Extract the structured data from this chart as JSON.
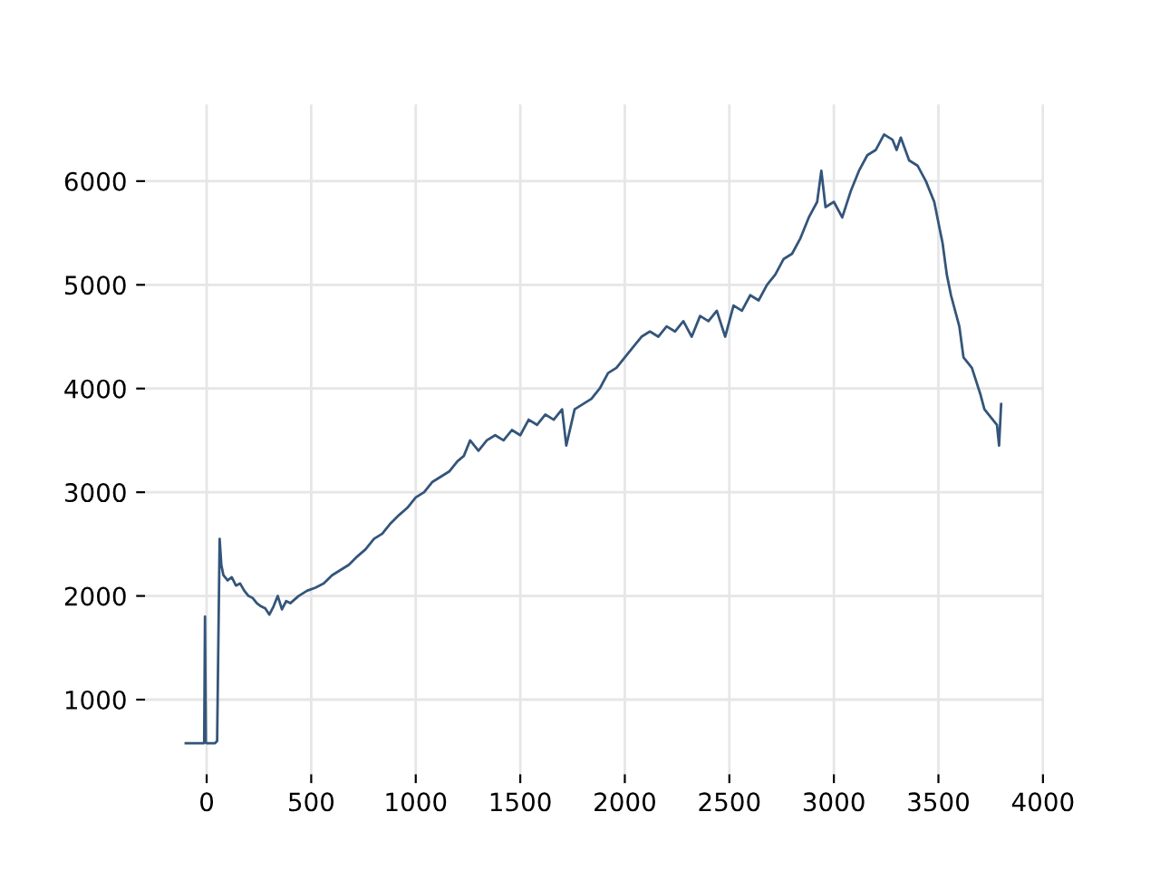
{
  "chart_data": {
    "type": "line",
    "x": [
      -100,
      -20,
      -12,
      -8,
      -4,
      0,
      40,
      50,
      62,
      70,
      80,
      100,
      120,
      140,
      160,
      180,
      200,
      220,
      240,
      260,
      280,
      300,
      320,
      340,
      360,
      380,
      400,
      440,
      480,
      520,
      560,
      600,
      640,
      680,
      720,
      760,
      800,
      840,
      880,
      920,
      960,
      1000,
      1040,
      1080,
      1120,
      1160,
      1200,
      1230,
      1260,
      1300,
      1340,
      1380,
      1420,
      1460,
      1500,
      1540,
      1580,
      1620,
      1660,
      1700,
      1720,
      1760,
      1800,
      1840,
      1880,
      1920,
      1960,
      2000,
      2040,
      2080,
      2120,
      2160,
      2200,
      2240,
      2280,
      2320,
      2360,
      2400,
      2440,
      2480,
      2520,
      2560,
      2600,
      2640,
      2680,
      2720,
      2760,
      2800,
      2840,
      2880,
      2920,
      2940,
      2960,
      3000,
      3040,
      3080,
      3120,
      3160,
      3200,
      3240,
      3280,
      3300,
      3320,
      3360,
      3400,
      3440,
      3480,
      3520,
      3540,
      3560,
      3600,
      3620,
      3660,
      3700,
      3720,
      3760,
      3780,
      3790,
      3800
    ],
    "series": [
      {
        "color": "#34557a",
        "values": [
          580,
          580,
          580,
          1800,
          590,
          580,
          580,
          600,
          2550,
          2300,
          2200,
          2150,
          2180,
          2100,
          2120,
          2050,
          2000,
          1980,
          1930,
          1900,
          1880,
          1820,
          1900,
          2000,
          1870,
          1950,
          1930,
          2000,
          2050,
          2080,
          2120,
          2200,
          2250,
          2300,
          2380,
          2450,
          2550,
          2600,
          2700,
          2780,
          2850,
          2950,
          3000,
          3100,
          3150,
          3200,
          3300,
          3350,
          3500,
          3400,
          3500,
          3550,
          3500,
          3600,
          3550,
          3700,
          3650,
          3750,
          3700,
          3800,
          3450,
          3800,
          3850,
          3900,
          4000,
          4150,
          4200,
          4300,
          4400,
          4500,
          4550,
          4500,
          4600,
          4550,
          4650,
          4500,
          4700,
          4650,
          4750,
          4500,
          4800,
          4750,
          4900,
          4850,
          5000,
          5100,
          5250,
          5300,
          5450,
          5650,
          5800,
          6100,
          5750,
          5800,
          5650,
          5900,
          6100,
          6250,
          6300,
          6450,
          6400,
          6300,
          6420,
          6200,
          6150,
          6000,
          5800,
          5400,
          5100,
          4900,
          4600,
          4300,
          4200,
          3950,
          3800,
          3700,
          3650,
          3450,
          3850
        ]
      }
    ],
    "xlim": [
      -295,
      4005
    ],
    "ylim": [
      280,
      6740
    ],
    "xticks": [
      0,
      500,
      1000,
      1500,
      2000,
      2500,
      3000,
      3500,
      4000
    ],
    "yticks": [
      1000,
      2000,
      3000,
      4000,
      5000,
      6000
    ],
    "grid": true
  }
}
